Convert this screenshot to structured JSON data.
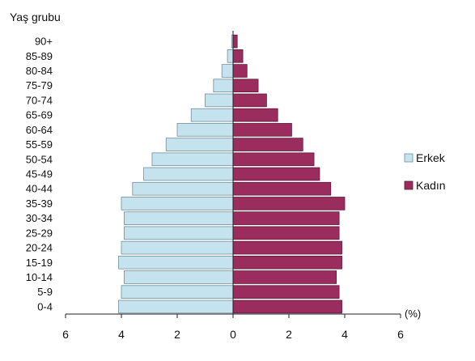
{
  "chart_data": {
    "type": "bar",
    "orientation": "horizontal-pyramid",
    "ylabel": "Yaş grubu",
    "xunit": "(%)",
    "categories": [
      "0-4",
      "5-9",
      "10-14",
      "15-19",
      "20-24",
      "25-29",
      "30-34",
      "35-39",
      "40-44",
      "45-49",
      "50-54",
      "55-59",
      "60-64",
      "65-69",
      "70-74",
      "75-79",
      "80-84",
      "85-89",
      "90+"
    ],
    "series": [
      {
        "name": "Erkek",
        "color": "#c5e3ee",
        "side": "left",
        "values": [
          4.1,
          4.0,
          3.9,
          4.1,
          4.0,
          3.9,
          3.9,
          4.0,
          3.6,
          3.2,
          2.9,
          2.4,
          2.0,
          1.5,
          1.0,
          0.7,
          0.4,
          0.2,
          0.05
        ]
      },
      {
        "name": "Kadın",
        "color": "#9b2d5e",
        "side": "right",
        "values": [
          3.9,
          3.8,
          3.7,
          3.9,
          3.9,
          3.8,
          3.8,
          4.0,
          3.5,
          3.1,
          2.9,
          2.5,
          2.1,
          1.6,
          1.2,
          0.9,
          0.5,
          0.35,
          0.15
        ]
      }
    ],
    "xticks": [
      "6",
      "4",
      "2",
      "0",
      "2",
      "4",
      "6"
    ],
    "xlim": [
      -6,
      6
    ],
    "grid": false,
    "legend_position": "right"
  }
}
